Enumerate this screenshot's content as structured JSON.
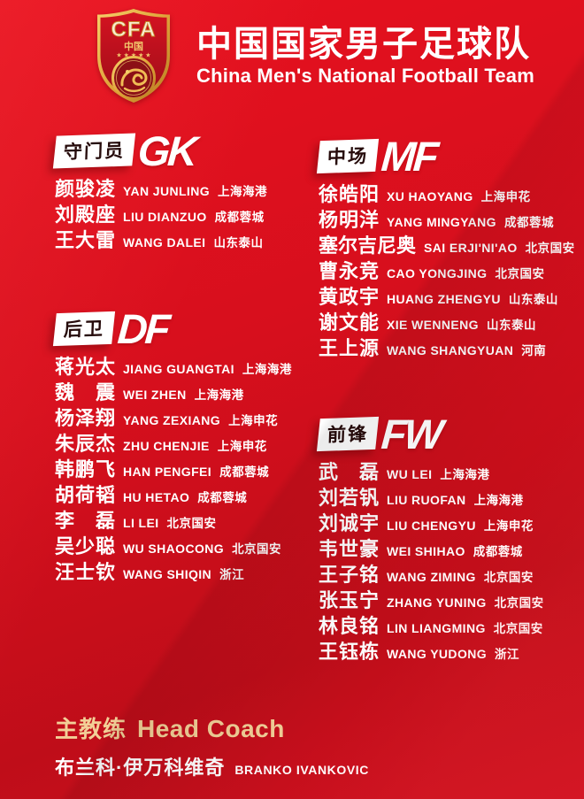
{
  "header": {
    "logo": {
      "acronym": "CFA",
      "country": "中国"
    },
    "title": "中国国家男子足球队",
    "subtitle": "China Men's National Football Team"
  },
  "sections": [
    {
      "id": "gk",
      "label_cn": "守门员",
      "label_en": "GK",
      "players": [
        {
          "name": "颜骏凌",
          "pinyin": "YAN JUNLING",
          "club": "上海海港"
        },
        {
          "name": "刘殿座",
          "pinyin": "LIU DIANZUO",
          "club": "成都蓉城"
        },
        {
          "name": "王大雷",
          "pinyin": "WANG DALEI",
          "club": "山东泰山"
        }
      ]
    },
    {
      "id": "df",
      "label_cn": "后卫",
      "label_en": "DF",
      "players": [
        {
          "name": "蒋光太",
          "pinyin": "JIANG GUANGTAI",
          "club": "上海海港"
        },
        {
          "name": "魏　震",
          "pinyin": "WEI ZHEN",
          "club": "上海海港"
        },
        {
          "name": "杨泽翔",
          "pinyin": "YANG ZEXIANG",
          "club": "上海申花"
        },
        {
          "name": "朱辰杰",
          "pinyin": "ZHU CHENJIE",
          "club": "上海申花"
        },
        {
          "name": "韩鹏飞",
          "pinyin": "HAN PENGFEI",
          "club": "成都蓉城"
        },
        {
          "name": "胡荷韬",
          "pinyin": "HU HETAO",
          "club": "成都蓉城"
        },
        {
          "name": "李　磊",
          "pinyin": "LI LEI",
          "club": "北京国安"
        },
        {
          "name": "吴少聪",
          "pinyin": "WU SHAOCONG",
          "club": "北京国安"
        },
        {
          "name": "汪士钦",
          "pinyin": "WANG SHIQIN",
          "club": "浙江"
        }
      ]
    },
    {
      "id": "mf",
      "label_cn": "中场",
      "label_en": "MF",
      "players": [
        {
          "name": "徐皓阳",
          "pinyin": "XU HAOYANG",
          "club": "上海申花"
        },
        {
          "name": "杨明洋",
          "pinyin": "YANG MINGYANG",
          "club": "成都蓉城"
        },
        {
          "name": "塞尔吉尼奥",
          "pinyin": "SAI ERJI'NI'AO",
          "club": "北京国安"
        },
        {
          "name": "曹永竞",
          "pinyin": "CAO YONGJING",
          "club": "北京国安"
        },
        {
          "name": "黄政宇",
          "pinyin": "HUANG ZHENGYU",
          "club": "山东泰山"
        },
        {
          "name": "谢文能",
          "pinyin": "XIE WENNENG",
          "club": "山东泰山"
        },
        {
          "name": "王上源",
          "pinyin": "WANG SHANGYUAN",
          "club": "河南"
        }
      ]
    },
    {
      "id": "fw",
      "label_cn": "前锋",
      "label_en": "FW",
      "players": [
        {
          "name": "武　磊",
          "pinyin": "WU LEI",
          "club": "上海海港"
        },
        {
          "name": "刘若钒",
          "pinyin": "LIU RUOFAN",
          "club": "上海海港"
        },
        {
          "name": "刘诚宇",
          "pinyin": "LIU CHENGYU",
          "club": "上海申花"
        },
        {
          "name": "韦世豪",
          "pinyin": "WEI SHIHAO",
          "club": "成都蓉城"
        },
        {
          "name": "王子铭",
          "pinyin": "WANG ZIMING",
          "club": "北京国安"
        },
        {
          "name": "张玉宁",
          "pinyin": "ZHANG YUNING",
          "club": "北京国安"
        },
        {
          "name": "林良铭",
          "pinyin": "LIN LIANGMING",
          "club": "北京国安"
        },
        {
          "name": "王钰栋",
          "pinyin": "WANG YUDONG",
          "club": "浙江"
        }
      ]
    }
  ],
  "coach": {
    "title_cn": "主教练",
    "title_en": "Head Coach",
    "name_cn": "布兰科·伊万科维奇",
    "name_en": "BRANKO IVANKOVIC"
  },
  "colors": {
    "background_red": "#d30f1d",
    "tag_box_bg": "#ffffff",
    "tag_box_text": "#260b0b",
    "coach_gold": "#f2cf97",
    "logo_gold": "#e9b44c",
    "text_white": "#ffffff"
  }
}
